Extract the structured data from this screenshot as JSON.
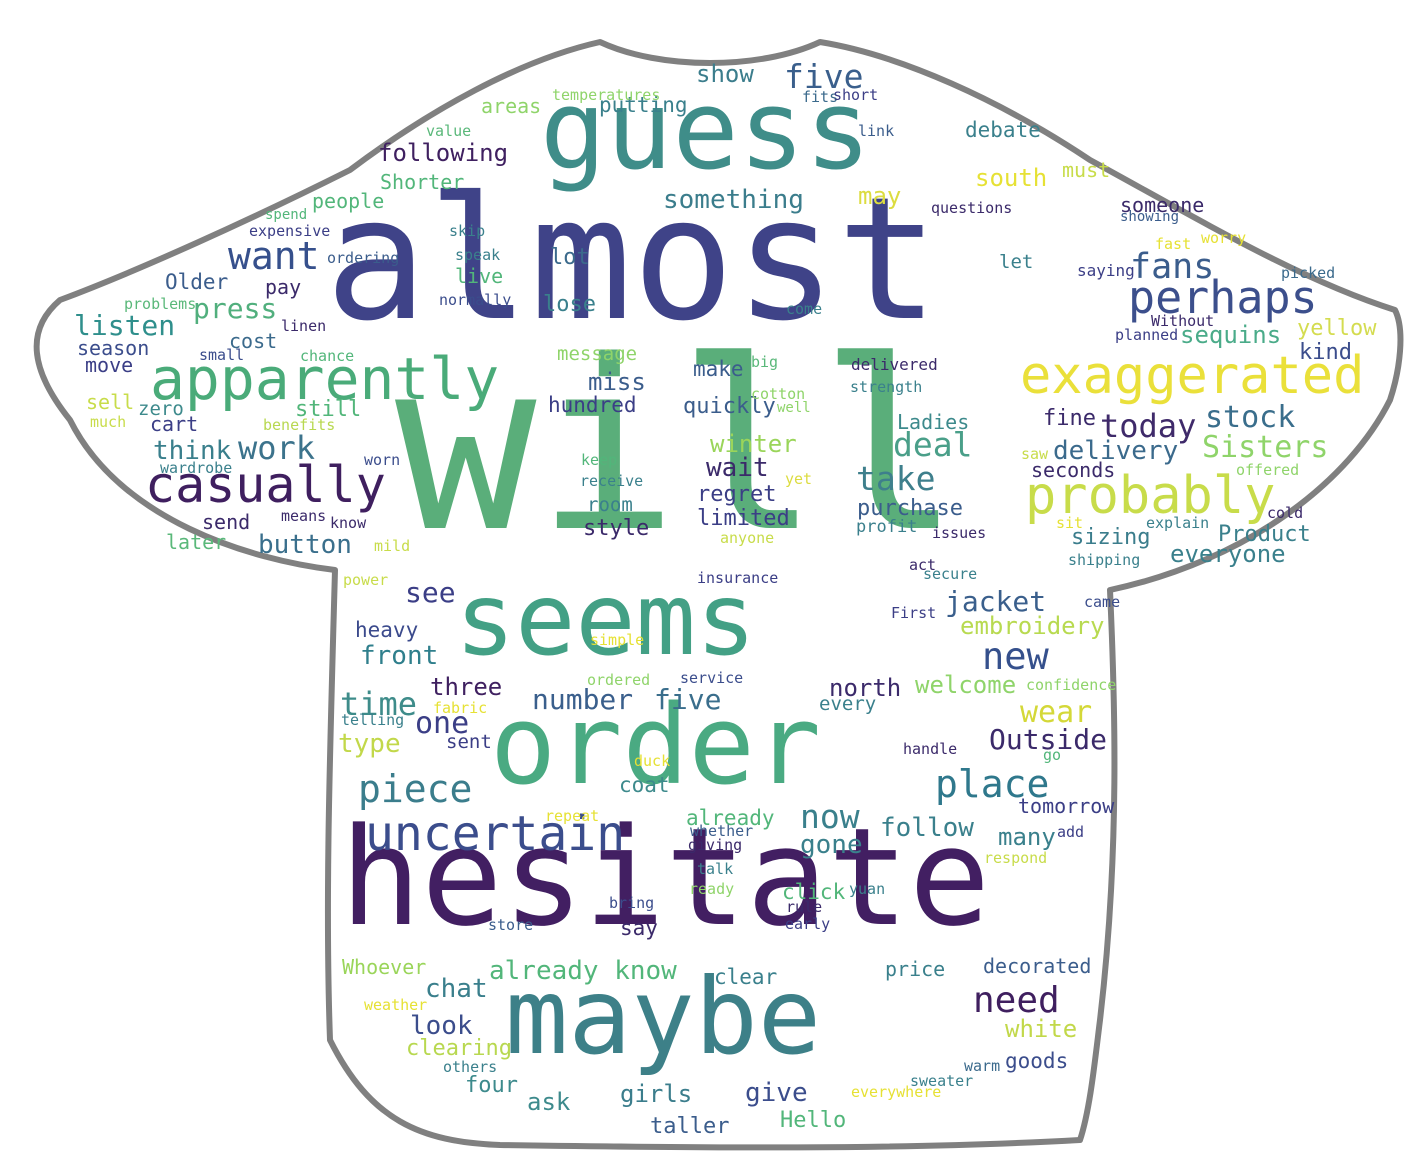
{
  "palette": {
    "dark_purple": "#46145f",
    "indigo": "#3b4a8c",
    "blue": "#3a5f92",
    "teal": "#3a8a8e",
    "teal_green": "#2f9a8a",
    "green": "#4db57a",
    "light_green": "#8fd35c",
    "yellow": "#e6e134",
    "outline": "#808080"
  },
  "words": [
    {
      "text": "will",
      "color": "#5aae7a"
    },
    {
      "text": "almost",
      "color": "#3f4388"
    },
    {
      "text": "guess",
      "color": "#3f8d89"
    },
    {
      "text": "hesitate",
      "color": "#421f62"
    },
    {
      "text": "order",
      "color": "#4aaa82"
    },
    {
      "text": "maybe",
      "color": "#3d8088"
    },
    {
      "text": "seems",
      "color": "#43a085"
    },
    {
      "text": "apparently",
      "color": "#4aab79"
    },
    {
      "text": "exaggerated",
      "color": "#eae03a"
    },
    {
      "text": "probably",
      "color": "#c8dc4a"
    },
    {
      "text": "uncertain",
      "color": "#3b4d8c"
    },
    {
      "text": "casually",
      "color": "#3f1f5f"
    },
    {
      "text": "perhaps",
      "color": "#3c4f8c"
    },
    {
      "text": "piece",
      "color": "#3b7d8c"
    },
    {
      "text": "place",
      "color": "#2f788c"
    },
    {
      "text": "want",
      "color": "#36508c"
    },
    {
      "text": "fans",
      "color": "#3b5d8c"
    },
    {
      "text": "five",
      "color": "#3a5f8c"
    },
    {
      "text": "five",
      "color": "#3a6e8c"
    },
    {
      "text": "new",
      "color": "#35508c"
    },
    {
      "text": "need",
      "color": "#3f1f5f"
    },
    {
      "text": "now",
      "color": "#3a808c"
    },
    {
      "text": "deal",
      "color": "#4a9f89"
    },
    {
      "text": "take",
      "color": "#3e7f8c"
    },
    {
      "text": "stock",
      "color": "#3a6e8c"
    },
    {
      "text": "today",
      "color": "#3f2a6a"
    },
    {
      "text": "Sisters",
      "color": "#8fd46a"
    },
    {
      "text": "delivery",
      "color": "#3b6a8c"
    },
    {
      "text": "work",
      "color": "#3c738c"
    },
    {
      "text": "time",
      "color": "#3e8c8a"
    },
    {
      "text": "jacket",
      "color": "#3a5f8c"
    },
    {
      "text": "Outside",
      "color": "#3b2a6a"
    },
    {
      "text": "wear",
      "color": "#d4d838"
    },
    {
      "text": "follow",
      "color": "#3a808c"
    },
    {
      "text": "gone",
      "color": "#3a808c"
    },
    {
      "text": "number",
      "color": "#3a5f8c"
    },
    {
      "text": "one",
      "color": "#3b3e86"
    },
    {
      "text": "press",
      "color": "#51af7d"
    },
    {
      "text": "listen",
      "color": "#2f8f8c"
    },
    {
      "text": "see",
      "color": "#3b3e86"
    },
    {
      "text": "button",
      "color": "#3a6f8c"
    },
    {
      "text": "think",
      "color": "#3a7f8c"
    },
    {
      "text": "something",
      "color": "#3b7d8c"
    },
    {
      "text": "following",
      "color": "#3f2060"
    },
    {
      "text": "show",
      "color": "#3b7d8c"
    },
    {
      "text": "embroidery",
      "color": "#b8da50"
    },
    {
      "text": "front",
      "color": "#2f7f8c"
    },
    {
      "text": "heavy",
      "color": "#3b4a8c"
    },
    {
      "text": "three",
      "color": "#3f2060"
    },
    {
      "text": "type",
      "color": "#c2d84a"
    },
    {
      "text": "already know",
      "color": "#52b67a"
    },
    {
      "text": "chat",
      "color": "#3a7f8c"
    },
    {
      "text": "look",
      "color": "#3b4d8c"
    },
    {
      "text": "white",
      "color": "#c2d84a"
    },
    {
      "text": "ask",
      "color": "#3d8a8c"
    },
    {
      "text": "give",
      "color": "#3b4d8c"
    },
    {
      "text": "girls",
      "color": "#3b7d8c"
    },
    {
      "text": "taller",
      "color": "#3b5d8c"
    },
    {
      "text": "Hello",
      "color": "#52b67a"
    },
    {
      "text": "four",
      "color": "#3d8a8c"
    },
    {
      "text": "clearing",
      "color": "#b8d850"
    },
    {
      "text": "Whoever",
      "color": "#9ad55a"
    },
    {
      "text": "winter",
      "color": "#9ad55a"
    },
    {
      "text": "wait",
      "color": "#3b2a6a"
    },
    {
      "text": "regret",
      "color": "#3b3e86"
    },
    {
      "text": "limited",
      "color": "#3b3e86"
    },
    {
      "text": "purchase",
      "color": "#3b5d8c"
    },
    {
      "text": "profit",
      "color": "#3a7f8c"
    },
    {
      "text": "Ladies",
      "color": "#3d8a8c"
    },
    {
      "text": "fine",
      "color": "#3b2a6a"
    },
    {
      "text": "seconds",
      "color": "#3b2a6a"
    },
    {
      "text": "sizing",
      "color": "#3b7d8c"
    },
    {
      "text": "everyone",
      "color": "#3a808c"
    },
    {
      "text": "Product",
      "color": "#3a808c"
    },
    {
      "text": "sequins",
      "color": "#4aab89"
    },
    {
      "text": "yellow",
      "color": "#d4dc50"
    },
    {
      "text": "kind",
      "color": "#3b4d8c"
    },
    {
      "text": "south",
      "color": "#e6e134"
    },
    {
      "text": "must",
      "color": "#c8dc4a"
    },
    {
      "text": "may",
      "color": "#dcdc40"
    },
    {
      "text": "someone",
      "color": "#3b2a6a"
    },
    {
      "text": "debate",
      "color": "#3a808c"
    },
    {
      "text": "miss",
      "color": "#3b5d8c"
    },
    {
      "text": "hundred",
      "color": "#3b3e86"
    },
    {
      "text": "quickly",
      "color": "#3b5d8c"
    },
    {
      "text": "make",
      "color": "#3b5d8c"
    },
    {
      "text": "lose",
      "color": "#3a808c"
    },
    {
      "text": "lot",
      "color": "#3b6a8c"
    },
    {
      "text": "room",
      "color": "#3a808c"
    },
    {
      "text": "style",
      "color": "#3b2a6a"
    },
    {
      "text": "send",
      "color": "#3b2a6a"
    },
    {
      "text": "later",
      "color": "#5ab87a"
    },
    {
      "text": "still",
      "color": "#52b67a"
    },
    {
      "text": "cart",
      "color": "#3b3e86"
    },
    {
      "text": "zero",
      "color": "#3d8a8c"
    },
    {
      "text": "sell",
      "color": "#c8dc4a"
    },
    {
      "text": "move",
      "color": "#3b3e86"
    },
    {
      "text": "season",
      "color": "#3b4d8c"
    },
    {
      "text": "cost",
      "color": "#3b6a8c"
    },
    {
      "text": "pay",
      "color": "#3b2a6a"
    },
    {
      "text": "Older",
      "color": "#3b5d8c"
    },
    {
      "text": "people",
      "color": "#52b67a"
    },
    {
      "text": "Shorter",
      "color": "#52b67a"
    },
    {
      "text": "live",
      "color": "#52b67a"
    },
    {
      "text": "putting",
      "color": "#3a808c"
    },
    {
      "text": "areas",
      "color": "#8fd46a"
    },
    {
      "text": "north",
      "color": "#3b2a6a"
    },
    {
      "text": "welcome",
      "color": "#8fd46a"
    },
    {
      "text": "many",
      "color": "#3a808c"
    },
    {
      "text": "tomorrow",
      "color": "#3b3e86"
    },
    {
      "text": "price",
      "color": "#3a808c"
    },
    {
      "text": "decorated",
      "color": "#3b5d8c"
    },
    {
      "text": "goods",
      "color": "#3b4d8c"
    },
    {
      "text": "clear",
      "color": "#3a808c"
    },
    {
      "text": "say",
      "color": "#3b2a6a"
    },
    {
      "text": "click",
      "color": "#52b67a"
    },
    {
      "text": "already",
      "color": "#52b67a"
    },
    {
      "text": "coat",
      "color": "#3d8a8c"
    },
    {
      "text": "message",
      "color": "#8fd46a"
    },
    {
      "text": "every",
      "color": "#3a808c"
    },
    {
      "text": "sent",
      "color": "#3b3e86"
    },
    {
      "text": "temperatures",
      "color": "#8fd46a"
    },
    {
      "text": "fits",
      "color": "#3b6a8c"
    },
    {
      "text": "short",
      "color": "#3b3e86"
    },
    {
      "text": "value",
      "color": "#5ab87a"
    },
    {
      "text": "link",
      "color": "#3b5d8c"
    },
    {
      "text": "questions",
      "color": "#3b2a6a"
    },
    {
      "text": "showing",
      "color": "#3b5d8c"
    },
    {
      "text": "worry",
      "color": "#e6e134"
    },
    {
      "text": "fast",
      "color": "#e6e134"
    },
    {
      "text": "let",
      "color": "#3a808c"
    },
    {
      "text": "saying",
      "color": "#3b3e86"
    },
    {
      "text": "picked",
      "color": "#3b6a8c"
    },
    {
      "text": "Without",
      "color": "#3b2a6a"
    },
    {
      "text": "planned",
      "color": "#3b3e86"
    },
    {
      "text": "come",
      "color": "#3a808c"
    },
    {
      "text": "delivered",
      "color": "#3b2a6a"
    },
    {
      "text": "strength",
      "color": "#3a808c"
    },
    {
      "text": "big",
      "color": "#5ab87a"
    },
    {
      "text": "cotton",
      "color": "#8fd46a"
    },
    {
      "text": "well",
      "color": "#8fd46a"
    },
    {
      "text": "spend",
      "color": "#52b67a"
    },
    {
      "text": "expensive",
      "color": "#3b3e86"
    },
    {
      "text": "skip",
      "color": "#3a808c"
    },
    {
      "text": "speak",
      "color": "#3a808c"
    },
    {
      "text": "ordering",
      "color": "#3b5d8c"
    },
    {
      "text": "normally",
      "color": "#3b4d8c"
    },
    {
      "text": "problems",
      "color": "#5ab87a"
    },
    {
      "text": "linen",
      "color": "#3b2a6a"
    },
    {
      "text": "small",
      "color": "#3b4d8c"
    },
    {
      "text": "chance",
      "color": "#52b67a"
    },
    {
      "text": "much",
      "color": "#c8dc4a"
    },
    {
      "text": "benefits",
      "color": "#b8d850"
    },
    {
      "text": "wardrobe",
      "color": "#3a808c"
    },
    {
      "text": "worn",
      "color": "#3b4d8c"
    },
    {
      "text": "means",
      "color": "#3b2a6a"
    },
    {
      "text": "know",
      "color": "#3b2a6a"
    },
    {
      "text": "mild",
      "color": "#c8dc4a"
    },
    {
      "text": "keep",
      "color": "#52b67a"
    },
    {
      "text": "receive",
      "color": "#3a808c"
    },
    {
      "text": "yet",
      "color": "#dcdc40"
    },
    {
      "text": "anyone",
      "color": "#c8dc4a"
    },
    {
      "text": "power",
      "color": "#c8dc4a"
    },
    {
      "text": "insurance",
      "color": "#3b3e86"
    },
    {
      "text": "act",
      "color": "#3b2a6a"
    },
    {
      "text": "secure",
      "color": "#3a808c"
    },
    {
      "text": "First",
      "color": "#3b3e86"
    },
    {
      "text": "came",
      "color": "#3b4d8c"
    },
    {
      "text": "saw",
      "color": "#c8dc4a"
    },
    {
      "text": "offered",
      "color": "#8fd46a"
    },
    {
      "text": "sit",
      "color": "#e6e134"
    },
    {
      "text": "explain",
      "color": "#3a808c"
    },
    {
      "text": "issues",
      "color": "#3b2a6a"
    },
    {
      "text": "shipping",
      "color": "#3a808c"
    },
    {
      "text": "cold",
      "color": "#3b2a6a"
    },
    {
      "text": "simple",
      "color": "#e6e134"
    },
    {
      "text": "ordered",
      "color": "#8fd46a"
    },
    {
      "text": "service",
      "color": "#3b4d8c"
    },
    {
      "text": "confidence",
      "color": "#8fd46a"
    },
    {
      "text": "telling",
      "color": "#3a808c"
    },
    {
      "text": "fabric",
      "color": "#e6e134"
    },
    {
      "text": "handle",
      "color": "#3b2a6a"
    },
    {
      "text": "go",
      "color": "#52b67a"
    },
    {
      "text": "duck",
      "color": "#e6e134"
    },
    {
      "text": "repeat",
      "color": "#e6e134"
    },
    {
      "text": "whether",
      "color": "#3b5d8c"
    },
    {
      "text": "giving",
      "color": "#3b2a6a"
    },
    {
      "text": "add",
      "color": "#3b3e86"
    },
    {
      "text": "respond",
      "color": "#c8dc4a"
    },
    {
      "text": "talk",
      "color": "#3a808c"
    },
    {
      "text": "ready",
      "color": "#8fd46a"
    },
    {
      "text": "bring",
      "color": "#3b4d8c"
    },
    {
      "text": "store",
      "color": "#3b5d8c"
    },
    {
      "text": "rule",
      "color": "#3b2a6a"
    },
    {
      "text": "early",
      "color": "#3b3e86"
    },
    {
      "text": "yuan",
      "color": "#3a808c"
    },
    {
      "text": "weather",
      "color": "#e6e134"
    },
    {
      "text": "others",
      "color": "#3a808c"
    },
    {
      "text": "warm",
      "color": "#3b6a8c"
    },
    {
      "text": "sweater",
      "color": "#3a808c"
    },
    {
      "text": "everywhere",
      "color": "#e6e134"
    }
  ]
}
